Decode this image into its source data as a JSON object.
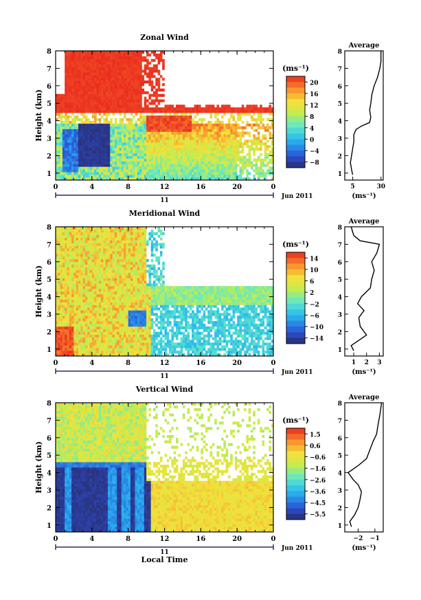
{
  "chart_data": [
    {
      "type": "heatmap",
      "title": "Zonal Wind",
      "ylabel": "Height (km)",
      "x_ticks": [
        "0",
        "4",
        "8",
        "12",
        "16",
        "20",
        "0"
      ],
      "y_ticks": [
        "1",
        "2",
        "3",
        "4",
        "5",
        "6",
        "7",
        "8"
      ],
      "xlim": [
        0,
        24
      ],
      "ylim": [
        0.6,
        8
      ],
      "date_bar": {
        "label": "11",
        "month": "Jun 2011"
      },
      "colorbar": {
        "unit": "(ms⁻¹)",
        "ticks": [
          "20",
          "16",
          "12",
          "8",
          "4",
          "0",
          "−4",
          "−8"
        ],
        "range": [
          -8,
          22
        ]
      },
      "average": {
        "title": "Average",
        "unit": "(ms⁻¹)",
        "x_ticks": [
          "5",
          "30"
        ],
        "xlim": [
          -2,
          32
        ],
        "profile": [
          [
            5,
            0.9
          ],
          [
            4,
            1.2
          ],
          [
            3,
            1.6
          ],
          [
            4,
            2.0
          ],
          [
            5,
            2.4
          ],
          [
            6,
            2.8
          ],
          [
            6,
            3.2
          ],
          [
            8,
            3.5
          ],
          [
            13,
            3.7
          ],
          [
            20,
            3.9
          ],
          [
            21,
            4.2
          ],
          [
            20,
            4.6
          ],
          [
            21,
            5.0
          ],
          [
            22,
            5.5
          ],
          [
            24,
            6.0
          ],
          [
            27,
            6.5
          ],
          [
            29,
            7.0
          ],
          [
            30,
            7.4
          ],
          [
            30,
            8.0
          ]
        ]
      }
    },
    {
      "type": "heatmap",
      "title": "Meridional Wind",
      "ylabel": "Height (km)",
      "x_ticks": [
        "0",
        "4",
        "8",
        "12",
        "16",
        "20",
        "0"
      ],
      "y_ticks": [
        "1",
        "2",
        "3",
        "4",
        "5",
        "6",
        "7",
        "8"
      ],
      "xlim": [
        0,
        24
      ],
      "ylim": [
        0.6,
        8
      ],
      "date_bar": {
        "label": "11",
        "month": "Jun 2011"
      },
      "colorbar": {
        "unit": "(ms⁻¹)",
        "ticks": [
          "14",
          "10",
          "6",
          "2",
          "−2",
          "−6",
          "−10",
          "−14"
        ],
        "range": [
          -16,
          16
        ]
      },
      "average": {
        "title": "Average",
        "unit": "(ms⁻¹)",
        "x_ticks": [
          "1",
          "2",
          "3"
        ],
        "xlim": [
          0.3,
          3.3
        ],
        "profile": [
          [
            1.0,
            0.9
          ],
          [
            0.8,
            1.2
          ],
          [
            2.0,
            1.8
          ],
          [
            1.5,
            2.3
          ],
          [
            1.4,
            2.8
          ],
          [
            1.8,
            3.2
          ],
          [
            1.3,
            3.6
          ],
          [
            1.6,
            4.0
          ],
          [
            2.3,
            4.5
          ],
          [
            2.4,
            5.0
          ],
          [
            2.6,
            5.5
          ],
          [
            2.4,
            6.0
          ],
          [
            2.8,
            6.5
          ],
          [
            3.0,
            7.0
          ],
          [
            1.5,
            7.2
          ],
          [
            1.0,
            7.5
          ],
          [
            0.8,
            8.0
          ]
        ]
      }
    },
    {
      "type": "heatmap",
      "title": "Vertical Wind",
      "ylabel": "Height (km)",
      "xlabel": "Local Time",
      "x_ticks": [
        "0",
        "4",
        "8",
        "12",
        "16",
        "20",
        "0"
      ],
      "y_ticks": [
        "1",
        "2",
        "3",
        "4",
        "5",
        "6",
        "7",
        "8"
      ],
      "xlim": [
        0,
        24
      ],
      "ylim": [
        0.6,
        8
      ],
      "date_bar": {
        "label": "11",
        "month": "Jun 2011"
      },
      "colorbar": {
        "unit": "(ms⁻¹)",
        "ticks": [
          "1.5",
          "0.6",
          "−0.6",
          "−1.6",
          "−2.6",
          "−3.6",
          "−4.5",
          "−5.5"
        ],
        "range": [
          -6.0,
          2.0
        ]
      },
      "average": {
        "title": "Average",
        "unit": "(ms⁻¹)",
        "x_ticks": [
          "−2",
          "−1"
        ],
        "xlim": [
          -2.8,
          -0.5
        ],
        "profile": [
          [
            -2.4,
            0.9
          ],
          [
            -2.5,
            1.2
          ],
          [
            -2.2,
            1.6
          ],
          [
            -2.0,
            2.0
          ],
          [
            -1.9,
            2.4
          ],
          [
            -1.8,
            2.9
          ],
          [
            -2.0,
            3.3
          ],
          [
            -2.3,
            3.6
          ],
          [
            -2.6,
            4.0
          ],
          [
            -2.0,
            4.4
          ],
          [
            -1.5,
            4.8
          ],
          [
            -1.3,
            5.3
          ],
          [
            -1.1,
            5.8
          ],
          [
            -0.9,
            6.2
          ],
          [
            -0.8,
            6.8
          ],
          [
            -0.7,
            7.3
          ],
          [
            -0.6,
            8.0
          ]
        ]
      }
    }
  ]
}
